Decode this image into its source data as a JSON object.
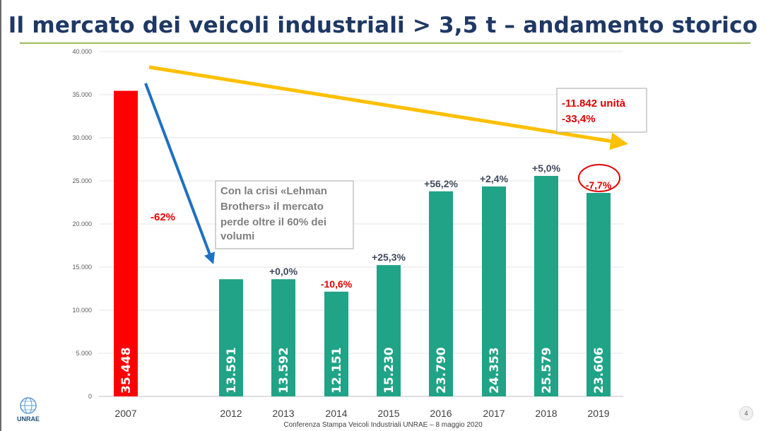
{
  "slide": {
    "title": "Il mercato dei veicoli industriali > 3,5 t – andamento storico",
    "footer": "Conferenza Stampa Veicoli Industriali UNRAE – 8 maggio 2020",
    "page_number": "4",
    "logo_text": "UNRAE"
  },
  "chart_data": {
    "type": "bar",
    "categories": [
      "2007",
      "2012",
      "2013",
      "2014",
      "2015",
      "2016",
      "2017",
      "2018",
      "2019"
    ],
    "values": [
      35448,
      13591,
      13592,
      12151,
      15230,
      23790,
      24353,
      25579,
      23606
    ],
    "value_labels": [
      "35.448",
      "13.591",
      "13.592",
      "12.151",
      "15.230",
      "23.790",
      "24.353",
      "25.579",
      "23.606"
    ],
    "change_labels": [
      "",
      "",
      "+0,0%",
      "-10,6%",
      "+25,3%",
      "+56,2%",
      "+2,4%",
      "+5,0%",
      "-7,7%"
    ],
    "yticks": [
      "0",
      "5.000",
      "10.000",
      "15.000",
      "20.000",
      "25.000",
      "30.000",
      "35.000",
      "40.000"
    ],
    "ylim": [
      0,
      40000
    ],
    "grid": true,
    "colors": {
      "bar_2007": "#ff0000",
      "bar": "#20a386",
      "positive_label": "#404a5e",
      "negative_label": "#e00000",
      "trend_arrow": "#ffc000",
      "drop_arrow": "#1f70c1"
    },
    "annotations": {
      "drop_label": "-62%",
      "crisis_note": [
        "Con la crisi «Lehman",
        "Brothers» il mercato",
        "perde oltre il 60% dei",
        "volumi"
      ],
      "trend_note": [
        "-11.842 unità",
        "-33,4%"
      ]
    }
  }
}
